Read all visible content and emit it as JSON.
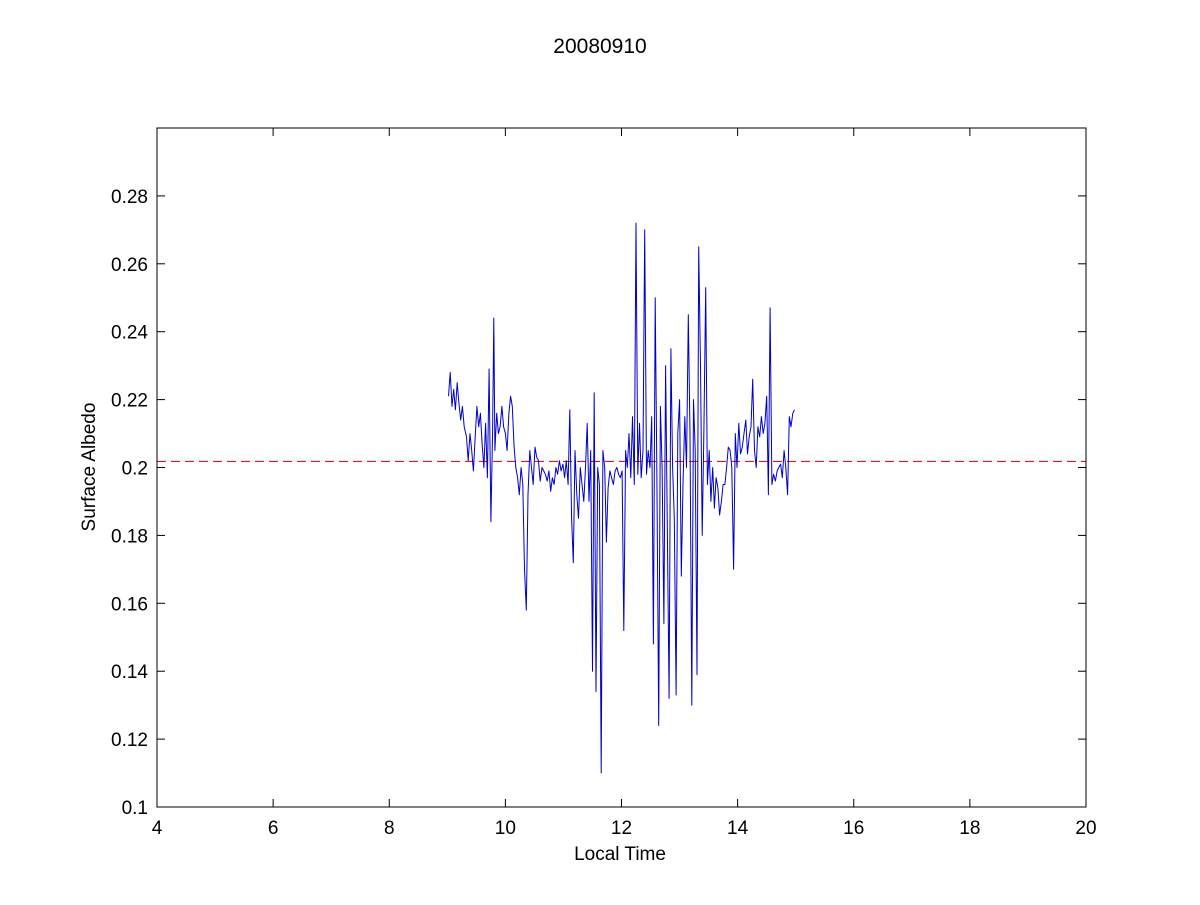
{
  "chart_data": {
    "type": "line",
    "title": "20080910",
    "xlabel": "Local Time",
    "ylabel": "Surface Albedo",
    "xlim": [
      4,
      20
    ],
    "ylim": [
      0.1,
      0.3
    ],
    "xticks": [
      4,
      6,
      8,
      10,
      12,
      14,
      16,
      18,
      20
    ],
    "xtick_labels": [
      "4",
      "6",
      "8",
      "10",
      "12",
      "14",
      "16",
      "18",
      "20"
    ],
    "yticks": [
      0.1,
      0.12,
      0.14,
      0.16,
      0.18,
      0.2,
      0.22,
      0.24,
      0.26,
      0.28
    ],
    "ytick_labels": [
      "0.1",
      "0.12",
      "0.14",
      "0.16",
      "0.18",
      "0.2",
      "0.22",
      "0.24",
      "0.26",
      "0.28"
    ],
    "grid": false,
    "legend": "none",
    "colors": {
      "series": "#0000cc",
      "reference": "#cc0000",
      "axes": "#000000"
    },
    "series": [
      {
        "style": "solid",
        "x": [
          9.02,
          9.05,
          9.08,
          9.11,
          9.14,
          9.17,
          9.2,
          9.23,
          9.26,
          9.29,
          9.33,
          9.36,
          9.39,
          9.42,
          9.45,
          9.48,
          9.51,
          9.54,
          9.57,
          9.6,
          9.63,
          9.66,
          9.69,
          9.72,
          9.75,
          9.78,
          9.8,
          9.82,
          9.85,
          9.88,
          9.91,
          9.94,
          9.97,
          10.0,
          10.03,
          10.06,
          10.09,
          10.12,
          10.15,
          10.18,
          10.21,
          10.24,
          10.27,
          10.3,
          10.33,
          10.36,
          10.39,
          10.42,
          10.45,
          10.48,
          10.51,
          10.54,
          10.57,
          10.6,
          10.63,
          10.66,
          10.69,
          10.72,
          10.75,
          10.78,
          10.81,
          10.84,
          10.87,
          10.9,
          10.93,
          10.96,
          10.99,
          11.02,
          11.05,
          11.08,
          11.11,
          11.14,
          11.17,
          11.2,
          11.23,
          11.26,
          11.29,
          11.32,
          11.35,
          11.38,
          11.41,
          11.44,
          11.47,
          11.5,
          11.53,
          11.56,
          11.59,
          11.62,
          11.65,
          11.68,
          11.71,
          11.74,
          11.77,
          11.8,
          11.83,
          11.86,
          11.89,
          11.92,
          11.95,
          11.98,
          12.01,
          12.04,
          12.07,
          12.1,
          12.13,
          12.16,
          12.19,
          12.22,
          12.25,
          12.28,
          12.31,
          12.34,
          12.37,
          12.4,
          12.43,
          12.46,
          12.49,
          12.52,
          12.55,
          12.58,
          12.61,
          12.64,
          12.67,
          12.7,
          12.73,
          12.76,
          12.79,
          12.82,
          12.85,
          12.88,
          12.91,
          12.94,
          12.97,
          13.0,
          13.03,
          13.06,
          13.09,
          13.12,
          13.15,
          13.18,
          13.21,
          13.24,
          13.27,
          13.3,
          13.33,
          13.36,
          13.39,
          13.42,
          13.45,
          13.48,
          13.51,
          13.54,
          13.57,
          13.6,
          13.63,
          13.66,
          13.69,
          13.72,
          13.75,
          13.78,
          13.81,
          13.84,
          13.87,
          13.9,
          13.93,
          13.96,
          13.99,
          14.02,
          14.05,
          14.08,
          14.11,
          14.14,
          14.17,
          14.2,
          14.23,
          14.26,
          14.29,
          14.32,
          14.35,
          14.38,
          14.41,
          14.44,
          14.47,
          14.5,
          14.53,
          14.56,
          14.59,
          14.62,
          14.65,
          14.68,
          14.71,
          14.74,
          14.77,
          14.8,
          14.83,
          14.86,
          14.89,
          14.92,
          14.95,
          14.98
        ],
        "y": [
          0.221,
          0.228,
          0.218,
          0.223,
          0.217,
          0.225,
          0.219,
          0.214,
          0.218,
          0.212,
          0.209,
          0.202,
          0.21,
          0.205,
          0.199,
          0.209,
          0.218,
          0.212,
          0.216,
          0.207,
          0.2,
          0.213,
          0.197,
          0.229,
          0.184,
          0.211,
          0.244,
          0.205,
          0.216,
          0.21,
          0.212,
          0.218,
          0.212,
          0.21,
          0.205,
          0.216,
          0.221,
          0.218,
          0.206,
          0.2,
          0.197,
          0.192,
          0.2,
          0.195,
          0.17,
          0.158,
          0.192,
          0.205,
          0.2,
          0.195,
          0.206,
          0.203,
          0.202,
          0.196,
          0.2,
          0.199,
          0.198,
          0.196,
          0.199,
          0.193,
          0.197,
          0.195,
          0.2,
          0.198,
          0.202,
          0.199,
          0.201,
          0.197,
          0.202,
          0.195,
          0.217,
          0.185,
          0.172,
          0.205,
          0.192,
          0.185,
          0.2,
          0.195,
          0.19,
          0.2,
          0.213,
          0.19,
          0.205,
          0.14,
          0.222,
          0.134,
          0.2,
          0.195,
          0.11,
          0.205,
          0.2,
          0.178,
          0.194,
          0.199,
          0.197,
          0.195,
          0.199,
          0.2,
          0.198,
          0.197,
          0.199,
          0.152,
          0.205,
          0.2,
          0.21,
          0.197,
          0.215,
          0.195,
          0.272,
          0.198,
          0.213,
          0.197,
          0.205,
          0.27,
          0.198,
          0.205,
          0.2,
          0.215,
          0.148,
          0.25,
          0.197,
          0.124,
          0.218,
          0.2,
          0.154,
          0.23,
          0.18,
          0.132,
          0.235,
          0.2,
          0.185,
          0.133,
          0.21,
          0.22,
          0.168,
          0.195,
          0.215,
          0.2,
          0.245,
          0.21,
          0.13,
          0.22,
          0.205,
          0.139,
          0.265,
          0.23,
          0.18,
          0.211,
          0.253,
          0.195,
          0.205,
          0.19,
          0.2,
          0.188,
          0.197,
          0.194,
          0.186,
          0.19,
          0.195,
          0.195,
          0.2,
          0.206,
          0.205,
          0.2,
          0.17,
          0.21,
          0.2,
          0.213,
          0.204,
          0.206,
          0.21,
          0.214,
          0.204,
          0.209,
          0.212,
          0.226,
          0.205,
          0.2,
          0.212,
          0.209,
          0.215,
          0.21,
          0.213,
          0.221,
          0.192,
          0.247,
          0.195,
          0.198,
          0.196,
          0.199,
          0.2,
          0.201,
          0.197,
          0.205,
          0.2,
          0.192,
          0.215,
          0.212,
          0.216,
          0.217
        ]
      }
    ],
    "reference_lines": [
      {
        "orientation": "horizontal",
        "style": "dashed",
        "y": 0.2018
      }
    ]
  }
}
